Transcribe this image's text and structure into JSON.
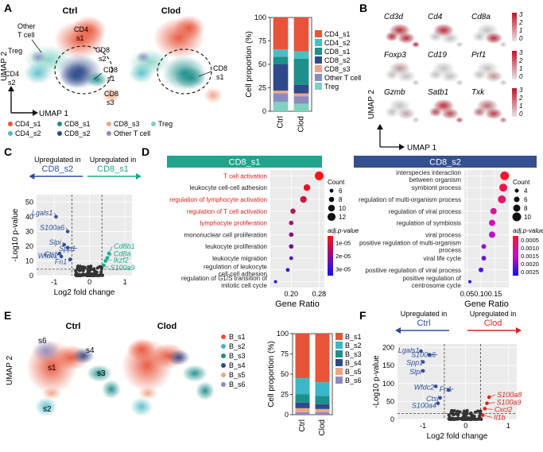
{
  "panels": {
    "A": "A",
    "B": "B",
    "C": "C",
    "D": "D",
    "E": "E",
    "F": "F"
  },
  "colors": {
    "CD4_s1": "#e8543a",
    "CD4_s2": "#4fbcc4",
    "CD8_s1": "#1e8f8a",
    "CD8_s2": "#2e4a8a",
    "CD8_s3": "#f0a486",
    "Treg": "#7fd1c0",
    "OtherT": "#8a8cc0",
    "B_s1": "#e8543a",
    "B_s2": "#3ab7c9",
    "B_s3": "#1e8f8a",
    "B_s4": "#2e4a8a",
    "B_s5": "#f0a486",
    "B_s6": "#8a8cc0",
    "up_blue": "#2d4f9e",
    "up_teal": "#17a98d",
    "up_red": "#d7261e"
  },
  "panelA": {
    "ctrl_title": "Ctrl",
    "clod_title": "Clod",
    "labels": {
      "other_t": "Other\nT cell",
      "treg": "Treg",
      "cd4_s1": "CD4\ns1",
      "cd8_s2": "CD8\ns2",
      "cd4_s2": "CD4\ns2",
      "cd8_s1": "CD8\ns1",
      "cd8_s3": "CD8\ns3",
      "cd8_s1_clod": "CD8\ns1"
    },
    "umap1": "UMAP 1",
    "umap2": "UMAP 2",
    "legend": [
      "CD4_s1",
      "CD4_s2",
      "CD8_s1",
      "CD8_s2",
      "CD8_s3",
      "Other T cell",
      "Treg"
    ],
    "legend_bottom": [
      "CD4_s1",
      "CD8_s1",
      "CD8_s3",
      "Treg",
      "CD4_s2",
      "CD8_s2",
      "Other T cell"
    ]
  },
  "chart_data": [
    {
      "type": "bar",
      "title": "",
      "ylabel": "Cell proportion (%)",
      "ylim": [
        0,
        100
      ],
      "categories": [
        "Ctrl",
        "Clod"
      ],
      "yticks": [
        "0",
        "25",
        "50",
        "75",
        "100"
      ],
      "series": [
        {
          "name": "Treg",
          "values": [
            10,
            8
          ]
        },
        {
          "name": "Other T cell",
          "values": [
            9,
            8
          ]
        },
        {
          "name": "CD8_s3",
          "values": [
            3,
            3
          ]
        },
        {
          "name": "CD8_s2",
          "values": [
            28,
            9
          ]
        },
        {
          "name": "CD8_s1",
          "values": [
            8,
            28
          ]
        },
        {
          "name": "CD4_s2",
          "values": [
            8,
            8
          ]
        },
        {
          "name": "CD4_s1",
          "values": [
            34,
            36
          ]
        }
      ],
      "legend": [
        "CD4_s1",
        "CD4_s2",
        "CD8_s1",
        "CD8_s2",
        "CD8_s3",
        "Other T cell",
        "Treg"
      ]
    },
    {
      "type": "bar",
      "title": "",
      "ylabel": "Cell proportion (%)",
      "ylim": [
        0,
        100
      ],
      "categories": [
        "Ctrl",
        "Clod"
      ],
      "yticks": [
        "0",
        "25",
        "50",
        "75",
        "100"
      ],
      "series": [
        {
          "name": "B_s6",
          "values": [
            3,
            3
          ]
        },
        {
          "name": "B_s5",
          "values": [
            5,
            4
          ]
        },
        {
          "name": "B_s4",
          "values": [
            7,
            6
          ]
        },
        {
          "name": "B_s3",
          "values": [
            10,
            10
          ]
        },
        {
          "name": "B_s2",
          "values": [
            20,
            17
          ]
        },
        {
          "name": "B_s1",
          "values": [
            55,
            60
          ]
        }
      ],
      "legend": [
        "B_s1",
        "B_s2",
        "B_s3",
        "B_s4",
        "B_s5",
        "B_s6"
      ]
    },
    {
      "type": "scatter",
      "title": "",
      "xlabel": "Log2 fold change",
      "ylabel": "-Log10 p-value",
      "xticks": [
        "-1",
        "0",
        "1"
      ],
      "yticks": [
        "0",
        "10",
        "20",
        "30",
        "40",
        "50"
      ],
      "xlim": [
        -1.5,
        1.2
      ],
      "ylim": [
        0,
        55
      ],
      "left_header": "Upregulated in",
      "left_group": "CD8_s2",
      "right_header": "Upregulated in",
      "right_group": "CD8_s1",
      "labeled_points": [
        {
          "gene": "Lgals1",
          "x": -0.95,
          "y": 40
        },
        {
          "gene": "S100a6",
          "x": -0.62,
          "y": 30
        },
        {
          "gene": "Slpi",
          "x": -0.72,
          "y": 21
        },
        {
          "gene": "Spp1",
          "x": -0.62,
          "y": 19
        },
        {
          "gene": "Ctsl",
          "x": -0.85,
          "y": 15
        },
        {
          "gene": "Wfdc2",
          "x": -0.8,
          "y": 13
        },
        {
          "gene": "Fn1",
          "x": -0.55,
          "y": 11
        },
        {
          "gene": "Cd8b1",
          "x": 0.55,
          "y": 15
        },
        {
          "gene": "Cd8a",
          "x": 0.5,
          "y": 12
        },
        {
          "gene": "Ikzf2",
          "x": 0.45,
          "y": 10
        },
        {
          "gene": "S100a9",
          "x": 0.4,
          "y": 7
        }
      ]
    },
    {
      "type": "scatter",
      "title": "",
      "xlabel": "Log2 fold change",
      "ylabel": "-Log10 p-value",
      "xticks": [
        "-1",
        "0",
        "1"
      ],
      "yticks": [
        "0",
        "50",
        "100",
        "150",
        "200"
      ],
      "xlim": [
        -1.6,
        1.2
      ],
      "ylim": [
        0,
        210
      ],
      "left_header": "Upregulated in",
      "left_group": "Ctrl",
      "right_header": "Upregulated in",
      "right_group": "Clod",
      "labeled_points": [
        {
          "gene": "Lgals1",
          "x": -1.05,
          "y": 190
        },
        {
          "gene": "S100a6",
          "x": -0.85,
          "y": 180
        },
        {
          "gene": "Spp1",
          "x": -1.0,
          "y": 160
        },
        {
          "gene": "Slpi",
          "x": -1.0,
          "y": 135
        },
        {
          "gene": "Wfdc2",
          "x": -0.7,
          "y": 92
        },
        {
          "gene": "Fn1",
          "x": -0.4,
          "y": 82
        },
        {
          "gene": "Ctsl",
          "x": -0.6,
          "y": 60
        },
        {
          "gene": "S100a4",
          "x": -0.65,
          "y": 45
        },
        {
          "gene": "S100a8",
          "x": 0.55,
          "y": 62
        },
        {
          "gene": "S100a9",
          "x": 0.5,
          "y": 45
        },
        {
          "gene": "Cxcl2",
          "x": 0.45,
          "y": 30
        },
        {
          "gene": "Il1b",
          "x": 0.4,
          "y": 12
        }
      ]
    }
  ],
  "panelB": {
    "genes": [
      "Cd3d",
      "Cd4",
      "Cd8a",
      "Foxp3",
      "Cd19",
      "Prf1",
      "Gzmb",
      "Satb1",
      "Txk"
    ],
    "scale": [
      "3",
      "2",
      "1",
      "0"
    ],
    "umap1": "UMAP 1",
    "umap2": "UMAP 2"
  },
  "panelD": {
    "left_title": "CD8_s1",
    "right_title": "CD8_s2",
    "left_terms": [
      "T cell activation",
      "leukocyte cell-cell adhesion",
      "regulation of lymphocyte activation",
      "regulation of T cell activation",
      "lymphocyte proliferation",
      "mononuclear cell proliferation",
      "leukocyte proliferation",
      "leukocyte migration",
      "regulation of leukocyte\ncell-cell adhesion",
      "regulation of G1/S transition of\nmitotic cell cycle"
    ],
    "left_ratios": [
      0.28,
      0.245,
      0.235,
      0.205,
      0.2,
      0.2,
      0.2,
      0.2,
      0.19,
      0.155
    ],
    "left_counts": [
      13,
      10,
      10,
      8,
      7,
      7,
      7,
      6,
      6,
      5
    ],
    "left_xticks": [
      "0.20",
      "0.28"
    ],
    "left_count_legend": [
      "6",
      "8",
      "10",
      "12"
    ],
    "left_padj_legend": [
      "1e-05",
      "2e-05",
      "3e-05"
    ],
    "left_padj_title": "adj.p-value",
    "right_terms": [
      "interspecies interaction\nbetween organism",
      "symbiont process",
      "regulation of multi-organism process",
      "regulation of viral process",
      "regulation of symbiosis",
      "viral process",
      "positive regulation of multi-organism\nprocess",
      "viral life cycle",
      "positive regulation of viral process",
      "positive regulation of\ncentrosome cycle"
    ],
    "right_ratios": [
      0.185,
      0.18,
      0.175,
      0.145,
      0.14,
      0.14,
      0.11,
      0.11,
      0.1,
      0.06
    ],
    "right_counts": [
      10,
      9,
      9,
      7,
      7,
      7,
      5,
      5,
      5,
      3
    ],
    "right_xticks": [
      "0.05",
      "0.10",
      "0.15"
    ],
    "right_count_legend": [
      "4",
      "6",
      "8",
      "10"
    ],
    "right_padj_legend": [
      "0.0005",
      "0.0010",
      "0.0015",
      "0.0020",
      "0.0025"
    ],
    "right_padj_title": "adj.p-value",
    "xlabel": "Gene Ratio",
    "count_title": "Count"
  },
  "panelE": {
    "ctrl_title": "Ctrl",
    "clod_title": "Clod",
    "labels": {
      "s6": "s6",
      "s4": "s4",
      "s1": "s1",
      "s3": "s3",
      "s2": "s2"
    },
    "legend": [
      "B_s1",
      "B_s2",
      "B_s3",
      "B_s4",
      "B_s5",
      "B_s6"
    ],
    "umap2": "UMAP 2"
  }
}
